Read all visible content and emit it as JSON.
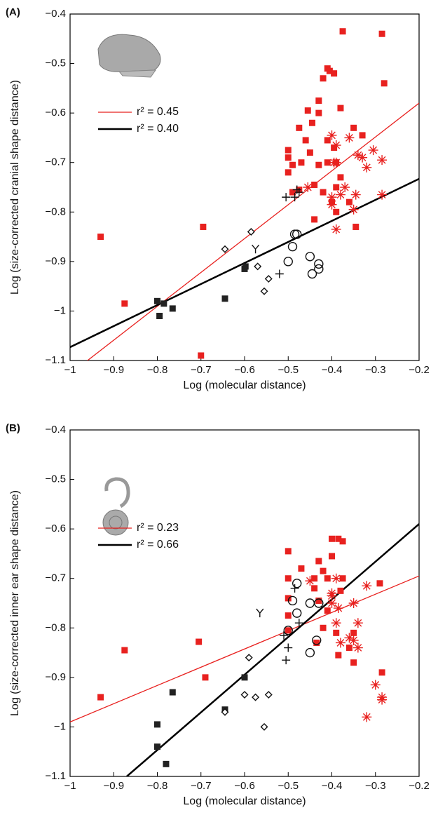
{
  "chart_data": [
    {
      "type": "scatter",
      "panel": "(A)",
      "x_label": "Log (molecular distance)",
      "y_label": "Log (size-corrected cranial shape distance)",
      "xlim": [
        -1,
        -0.2
      ],
      "ylim": [
        -1.1,
        -0.4
      ],
      "xticks": [
        {
          "value": -1,
          "label": "−1"
        },
        {
          "value": -0.9,
          "label": "−0.9"
        },
        {
          "value": -0.8,
          "label": "−0.8"
        },
        {
          "value": -0.7,
          "label": "−0.7"
        },
        {
          "value": -0.6,
          "label": "−0.6"
        },
        {
          "value": -0.5,
          "label": "−0.5"
        },
        {
          "value": -0.4,
          "label": "−0.4"
        },
        {
          "value": -0.3,
          "label": "−0.3"
        },
        {
          "value": -0.2,
          "label": "−0.2"
        }
      ],
      "yticks": [
        {
          "value": -1.1,
          "label": "−1.1"
        },
        {
          "value": -1,
          "label": "−1"
        },
        {
          "value": -0.9,
          "label": "−0.9"
        },
        {
          "value": -0.8,
          "label": "−0.8"
        },
        {
          "value": -0.7,
          "label": "−0.7"
        },
        {
          "value": -0.6,
          "label": "−0.6"
        },
        {
          "value": -0.5,
          "label": "−0.5"
        },
        {
          "value": -0.4,
          "label": "−0.4"
        }
      ],
      "fit_lines": [
        {
          "label": "r² = 0.45",
          "color": "#e8211f",
          "x": [
            -0.96,
            -0.2
          ],
          "values": [
            -1.1,
            -0.58
          ]
        },
        {
          "label": "r² = 0.40",
          "color": "#000000",
          "x": [
            -1,
            -0.2
          ],
          "values": [
            -1.073,
            -0.733
          ]
        }
      ],
      "series": [
        {
          "marker": "square",
          "color": "#e8211f",
          "x": [
            -0.93,
            -0.875,
            -0.695,
            -0.7,
            -0.375,
            -0.285,
            -0.28,
            -0.41,
            -0.405,
            -0.395,
            -0.42,
            -0.43,
            -0.38,
            -0.455,
            -0.43,
            -0.445,
            -0.35,
            -0.475,
            -0.46,
            -0.41,
            -0.395,
            -0.5,
            -0.5,
            -0.45,
            -0.33,
            -0.41,
            -0.43,
            -0.47,
            -0.39,
            -0.49,
            -0.5,
            -0.44,
            -0.39,
            -0.38,
            -0.475,
            -0.42,
            -0.4,
            -0.36,
            -0.39,
            -0.345,
            -0.49,
            -0.44
          ],
          "values": [
            -0.85,
            -0.985,
            -0.83,
            -1.09,
            -0.435,
            -0.44,
            -0.54,
            -0.51,
            -0.515,
            -0.52,
            -0.53,
            -0.575,
            -0.59,
            -0.595,
            -0.6,
            -0.62,
            -0.63,
            -0.63,
            -0.655,
            -0.655,
            -0.67,
            -0.675,
            -0.69,
            -0.68,
            -0.645,
            -0.7,
            -0.705,
            -0.7,
            -0.7,
            -0.705,
            -0.72,
            -0.745,
            -0.75,
            -0.73,
            -0.755,
            -0.76,
            -0.78,
            -0.78,
            -0.8,
            -0.83,
            -0.76,
            -0.815
          ]
        },
        {
          "marker": "square",
          "color": "#222222",
          "x": [
            -0.8,
            -0.795,
            -0.785,
            -0.765,
            -0.645,
            -0.6,
            -0.598
          ],
          "values": [
            -0.98,
            -1.01,
            -0.985,
            -0.995,
            -0.975,
            -0.915,
            -0.91
          ]
        },
        {
          "marker": "asterisk",
          "color": "#e8211f",
          "x": [
            -0.4,
            -0.39,
            -0.36,
            -0.34,
            -0.33,
            -0.305,
            -0.285,
            -0.32,
            -0.39,
            -0.395,
            -0.455,
            -0.37,
            -0.4,
            -0.38,
            -0.35,
            -0.285,
            -0.345,
            -0.39,
            -0.4
          ],
          "values": [
            -0.645,
            -0.665,
            -0.65,
            -0.685,
            -0.69,
            -0.675,
            -0.695,
            -0.71,
            -0.7,
            -0.7,
            -0.75,
            -0.75,
            -0.785,
            -0.765,
            -0.795,
            -0.765,
            -0.765,
            -0.835,
            -0.77
          ]
        },
        {
          "marker": "circle",
          "color": "#111111",
          "x": [
            -0.48,
            -0.485,
            -0.49,
            -0.5,
            -0.45,
            -0.43,
            -0.43,
            -0.445
          ],
          "values": [
            -0.845,
            -0.845,
            -0.87,
            -0.9,
            -0.89,
            -0.905,
            -0.915,
            -0.925
          ]
        },
        {
          "marker": "diamond",
          "color": "#111111",
          "x": [
            -0.645,
            -0.585,
            -0.57,
            -0.545,
            -0.555
          ],
          "values": [
            -0.875,
            -0.84,
            -0.91,
            -0.935,
            -0.96
          ]
        },
        {
          "marker": "plus",
          "color": "#111111",
          "x": [
            -0.485,
            -0.48,
            -0.505,
            -0.52,
            -0.475
          ],
          "values": [
            -0.77,
            -0.755,
            -0.77,
            -0.925,
            -0.76
          ]
        },
        {
          "marker": "y",
          "color": "#111111",
          "x": [
            -0.575
          ],
          "values": [
            -0.875
          ]
        }
      ]
    },
    {
      "type": "scatter",
      "panel": "(B)",
      "x_label": "Log (molecular distance)",
      "y_label": "Log (size-corrected inner ear shape distance)",
      "xlim": [
        -1,
        -0.2
      ],
      "ylim": [
        -1.1,
        -0.4
      ],
      "xticks": [
        {
          "value": -1,
          "label": "−1"
        },
        {
          "value": -0.9,
          "label": "−0.9"
        },
        {
          "value": -0.8,
          "label": "−0.8"
        },
        {
          "value": -0.7,
          "label": "−0.7"
        },
        {
          "value": -0.6,
          "label": "−0.6"
        },
        {
          "value": -0.5,
          "label": "−0.5"
        },
        {
          "value": -0.4,
          "label": "−0.4"
        },
        {
          "value": -0.3,
          "label": "−0.3"
        },
        {
          "value": -0.2,
          "label": "−0.2"
        }
      ],
      "yticks": [
        {
          "value": -1.1,
          "label": "−1.1"
        },
        {
          "value": -1,
          "label": "−1"
        },
        {
          "value": -0.9,
          "label": "−0.9"
        },
        {
          "value": -0.8,
          "label": "−0.8"
        },
        {
          "value": -0.7,
          "label": "−0.7"
        },
        {
          "value": -0.6,
          "label": "−0.6"
        },
        {
          "value": -0.5,
          "label": "−0.5"
        },
        {
          "value": -0.4,
          "label": "−0.4"
        }
      ],
      "fit_lines": [
        {
          "label": "r² = 0.23",
          "color": "#e8211f",
          "x": [
            -1,
            -0.2
          ],
          "values": [
            -0.99,
            -0.695
          ]
        },
        {
          "label": "r² = 0.66",
          "color": "#000000",
          "x": [
            -0.87,
            -0.2
          ],
          "values": [
            -1.1,
            -0.59
          ]
        }
      ],
      "series": [
        {
          "marker": "square",
          "color": "#e8211f",
          "x": [
            -0.93,
            -0.875,
            -0.705,
            -0.69,
            -0.5,
            -0.4,
            -0.385,
            -0.375,
            -0.4,
            -0.43,
            -0.42,
            -0.44,
            -0.41,
            -0.47,
            -0.5,
            -0.44,
            -0.375,
            -0.38,
            -0.5,
            -0.43,
            -0.41,
            -0.5,
            -0.5,
            -0.42,
            -0.435,
            -0.39,
            -0.35,
            -0.385,
            -0.35,
            -0.29,
            -0.285,
            -0.36
          ],
          "values": [
            -0.94,
            -0.845,
            -0.828,
            -0.9,
            -0.645,
            -0.62,
            -0.62,
            -0.625,
            -0.655,
            -0.665,
            -0.685,
            -0.7,
            -0.7,
            -0.68,
            -0.7,
            -0.72,
            -0.7,
            -0.725,
            -0.74,
            -0.745,
            -0.765,
            -0.775,
            -0.805,
            -0.8,
            -0.83,
            -0.81,
            -0.81,
            -0.855,
            -0.87,
            -0.71,
            -0.89,
            -0.84
          ]
        },
        {
          "marker": "square",
          "color": "#222222",
          "x": [
            -0.8,
            -0.8,
            -0.78,
            -0.765,
            -0.645,
            -0.6
          ],
          "values": [
            -0.995,
            -1.04,
            -1.075,
            -0.93,
            -0.965,
            -0.9
          ]
        },
        {
          "marker": "asterisk",
          "color": "#e8211f",
          "x": [
            -0.4,
            -0.39,
            -0.4,
            -0.385,
            -0.39,
            -0.45,
            -0.35,
            -0.32,
            -0.34,
            -0.36,
            -0.38,
            -0.34,
            -0.35,
            -0.3,
            -0.285,
            -0.285,
            -0.32,
            -0.4
          ],
          "values": [
            -0.735,
            -0.7,
            -0.73,
            -0.76,
            -0.79,
            -0.705,
            -0.75,
            -0.715,
            -0.79,
            -0.82,
            -0.83,
            -0.84,
            -0.825,
            -0.915,
            -0.94,
            -0.945,
            -0.98,
            -0.75
          ]
        },
        {
          "marker": "circle",
          "color": "#111111",
          "x": [
            -0.48,
            -0.49,
            -0.48,
            -0.45,
            -0.43,
            -0.5,
            -0.435,
            -0.45
          ],
          "values": [
            -0.71,
            -0.745,
            -0.77,
            -0.75,
            -0.75,
            -0.805,
            -0.825,
            -0.85
          ]
        },
        {
          "marker": "diamond",
          "color": "#111111",
          "x": [
            -0.59,
            -0.6,
            -0.575,
            -0.545,
            -0.645,
            -0.555
          ],
          "values": [
            -0.86,
            -0.935,
            -0.94,
            -0.935,
            -0.97,
            -1.0
          ]
        },
        {
          "marker": "plus",
          "color": "#111111",
          "x": [
            -0.485,
            -0.475,
            -0.51,
            -0.5,
            -0.505
          ],
          "values": [
            -0.72,
            -0.79,
            -0.815,
            -0.84,
            -0.865
          ]
        },
        {
          "marker": "y",
          "color": "#111111",
          "x": [
            -0.565
          ],
          "values": [
            -0.77
          ]
        }
      ]
    }
  ]
}
